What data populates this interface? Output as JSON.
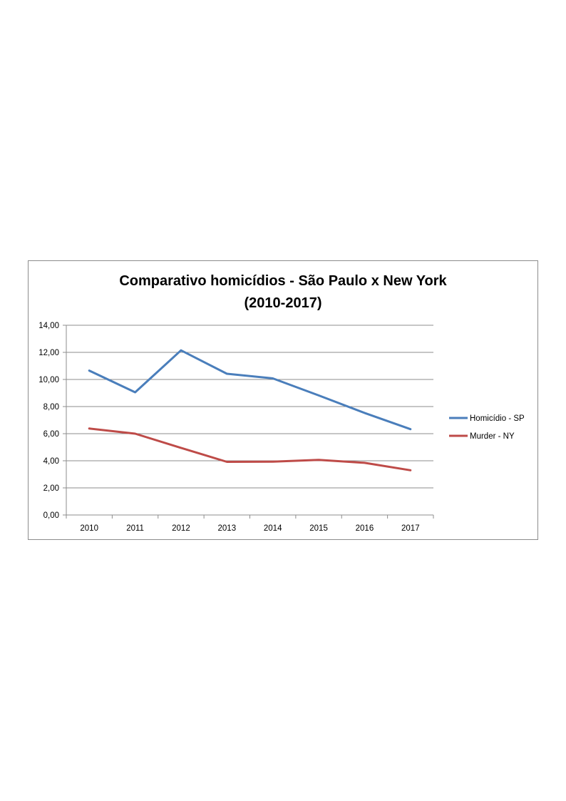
{
  "chart_data": {
    "type": "line",
    "title_lines": [
      "Comparativo homicídios - São Paulo x New York",
      "(2010-2017)"
    ],
    "categories": [
      "2010",
      "2011",
      "2012",
      "2013",
      "2014",
      "2015",
      "2016",
      "2017"
    ],
    "series": [
      {
        "name": "Homicídio - SP",
        "color": "#4a7ebb",
        "values": [
          10.65,
          9.05,
          12.15,
          10.42,
          10.08,
          8.82,
          7.53,
          6.33
        ]
      },
      {
        "name": "Murder - NY",
        "color": "#be4b48",
        "values": [
          6.38,
          6.0,
          4.95,
          3.92,
          3.93,
          4.07,
          3.85,
          3.3
        ]
      }
    ],
    "ylim": [
      0,
      14
    ],
    "yticks": [
      "0,00",
      "2,00",
      "4,00",
      "6,00",
      "8,00",
      "10,00",
      "12,00",
      "14,00"
    ],
    "grid": true,
    "legend_position": "right"
  }
}
